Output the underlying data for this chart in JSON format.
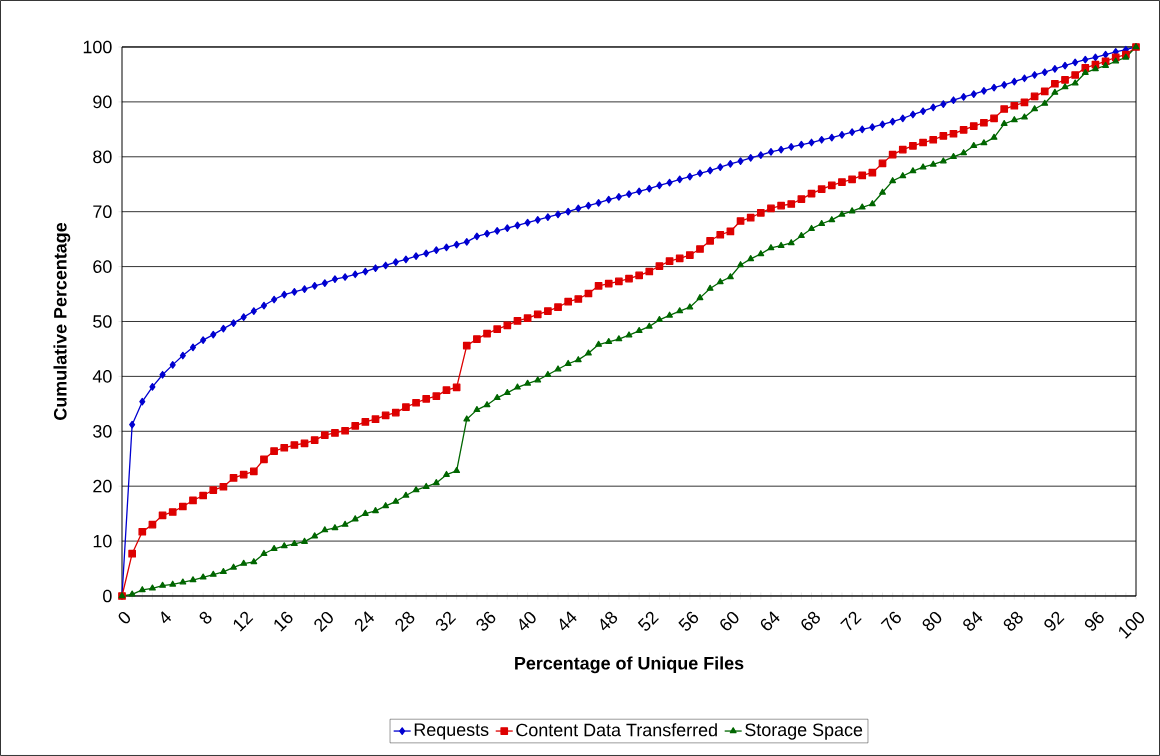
{
  "chart_data": {
    "type": "line",
    "xlabel": "Percentage of Unique Files",
    "ylabel": "Cumulative Percentage",
    "x": [
      0,
      1,
      2,
      3,
      4,
      5,
      6,
      7,
      8,
      9,
      10,
      11,
      12,
      13,
      14,
      15,
      16,
      17,
      18,
      19,
      20,
      21,
      22,
      23,
      24,
      25,
      26,
      27,
      28,
      29,
      30,
      31,
      32,
      33,
      34,
      35,
      36,
      37,
      38,
      39,
      40,
      41,
      42,
      43,
      44,
      45,
      46,
      47,
      48,
      49,
      50,
      51,
      52,
      53,
      54,
      55,
      56,
      57,
      58,
      59,
      60,
      61,
      62,
      63,
      64,
      65,
      66,
      67,
      68,
      69,
      70,
      71,
      72,
      73,
      74,
      75,
      76,
      77,
      78,
      79,
      80,
      81,
      82,
      83,
      84,
      85,
      86,
      87,
      88,
      89,
      90,
      91,
      92,
      93,
      94,
      95,
      96,
      97,
      98,
      99,
      100
    ],
    "series": [
      {
        "name": "Requests",
        "color": "#0000d0",
        "marker": "diamond",
        "values": [
          0,
          31.2,
          35.4,
          38.1,
          40.3,
          42.1,
          43.8,
          45.3,
          46.6,
          47.6,
          48.7,
          49.7,
          50.8,
          51.9,
          52.9,
          54.0,
          54.9,
          55.4,
          55.9,
          56.5,
          57.0,
          57.7,
          58.1,
          58.6,
          59.1,
          59.7,
          60.2,
          60.8,
          61.3,
          61.9,
          62.4,
          63.0,
          63.5,
          64.0,
          64.5,
          65.5,
          66.0,
          66.5,
          67.0,
          67.5,
          68.0,
          68.5,
          69.0,
          69.5,
          70.0,
          70.6,
          71.1,
          71.6,
          72.2,
          72.7,
          73.2,
          73.7,
          74.2,
          74.8,
          75.3,
          75.9,
          76.4,
          77.0,
          77.5,
          78.1,
          78.7,
          79.2,
          79.8,
          80.3,
          80.9,
          81.3,
          81.8,
          82.2,
          82.6,
          83.1,
          83.5,
          84.0,
          84.5,
          85.0,
          85.4,
          85.9,
          86.4,
          87.0,
          87.7,
          88.3,
          89.0,
          89.6,
          90.3,
          90.9,
          91.4,
          92.0,
          92.6,
          93.1,
          93.7,
          94.3,
          94.9,
          95.4,
          96.0,
          96.6,
          97.2,
          97.7,
          98.1,
          98.6,
          99.1,
          99.5,
          100
        ]
      },
      {
        "name": "Content Data Transferred",
        "color": "#dd0000",
        "marker": "square",
        "values": [
          0,
          7.7,
          11.7,
          13.0,
          14.7,
          15.3,
          16.3,
          17.4,
          18.3,
          19.3,
          19.9,
          21.5,
          22.1,
          22.7,
          24.9,
          26.4,
          27.0,
          27.5,
          27.8,
          28.4,
          29.3,
          29.7,
          30.1,
          31.0,
          31.7,
          32.2,
          32.9,
          33.4,
          34.4,
          35.2,
          35.9,
          36.4,
          37.5,
          38.0,
          45.6,
          46.8,
          47.8,
          48.6,
          49.3,
          50.1,
          50.6,
          51.3,
          51.9,
          52.6,
          53.6,
          54.1,
          55.1,
          56.5,
          56.9,
          57.3,
          57.8,
          58.4,
          59.1,
          60.1,
          61.0,
          61.5,
          62.1,
          63.2,
          64.7,
          65.8,
          66.4,
          68.3,
          68.9,
          69.8,
          70.6,
          71.1,
          71.4,
          72.3,
          73.3,
          74.1,
          74.8,
          75.4,
          75.9,
          76.6,
          77.1,
          78.8,
          80.4,
          81.3,
          82.0,
          82.6,
          83.1,
          83.8,
          84.2,
          84.9,
          85.6,
          86.2,
          87.0,
          88.7,
          89.3,
          89.9,
          91.0,
          91.9,
          93.3,
          94.0,
          94.9,
          96.2,
          96.8,
          97.4,
          98.1,
          98.6,
          100
        ]
      },
      {
        "name": "Storage Space",
        "color": "#006600",
        "marker": "triangle",
        "values": [
          0,
          0.3,
          1.1,
          1.4,
          1.9,
          2.1,
          2.5,
          2.9,
          3.4,
          3.9,
          4.4,
          5.2,
          5.9,
          6.2,
          7.7,
          8.6,
          9.1,
          9.5,
          9.9,
          10.9,
          12.0,
          12.4,
          13.0,
          14.0,
          15.0,
          15.5,
          16.4,
          17.2,
          18.3,
          19.3,
          19.9,
          20.6,
          22.1,
          22.8,
          32.2,
          33.9,
          34.8,
          36.1,
          37.0,
          38.0,
          38.7,
          39.3,
          40.3,
          41.3,
          42.3,
          43.0,
          44.2,
          45.8,
          46.3,
          46.8,
          47.5,
          48.3,
          49.1,
          50.3,
          51.1,
          51.9,
          52.6,
          54.3,
          56.0,
          57.2,
          58.1,
          60.3,
          61.4,
          62.3,
          63.4,
          63.8,
          64.3,
          65.6,
          66.9,
          67.8,
          68.5,
          69.5,
          70.1,
          70.8,
          71.4,
          73.5,
          75.6,
          76.5,
          77.4,
          78.1,
          78.6,
          79.2,
          80.0,
          80.7,
          82.0,
          82.5,
          83.5,
          86.0,
          86.7,
          87.2,
          88.7,
          89.7,
          91.7,
          92.7,
          93.4,
          95.3,
          96.0,
          96.6,
          97.4,
          98.1,
          100
        ]
      }
    ],
    "xlim": [
      0,
      100
    ],
    "xticks": [
      0,
      4,
      8,
      12,
      16,
      20,
      24,
      28,
      32,
      36,
      40,
      44,
      48,
      52,
      56,
      60,
      64,
      68,
      72,
      76,
      80,
      84,
      88,
      92,
      96,
      100
    ],
    "ylim": [
      0,
      100
    ],
    "yticks": [
      0,
      10,
      20,
      30,
      40,
      50,
      60,
      70,
      80,
      90,
      100
    ],
    "grid": "y",
    "legend": "bottom",
    "line_style": "solid"
  }
}
